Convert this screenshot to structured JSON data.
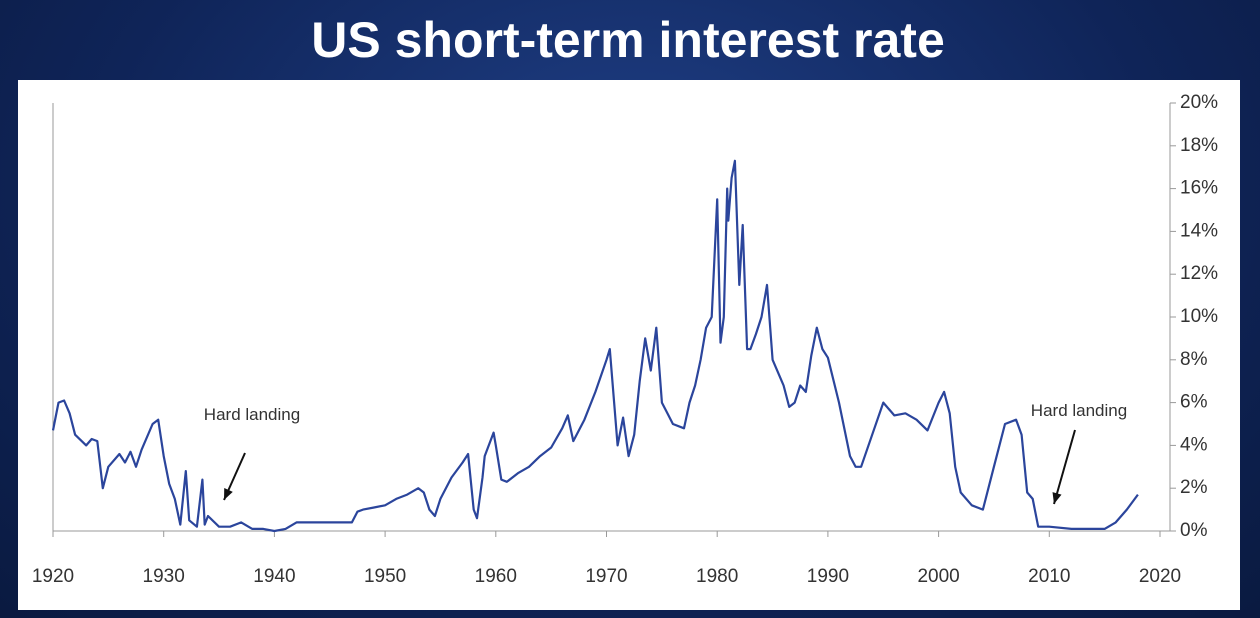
{
  "chart_data": {
    "type": "line",
    "title": "US short-term interest rate",
    "annotations": [
      "Hard landing",
      "Hard landing"
    ],
    "xlim": [
      1920,
      2020
    ],
    "xticks": [
      1920,
      1930,
      1940,
      1950,
      1960,
      1970,
      1980,
      1990,
      2000,
      2010,
      2020
    ],
    "ylim": [
      0,
      20
    ],
    "yticks": [
      {
        "value": 0,
        "label": "0%"
      },
      {
        "value": 2,
        "label": "2%"
      },
      {
        "value": 4,
        "label": "4%"
      },
      {
        "value": 6,
        "label": "6%"
      },
      {
        "value": 8,
        "label": "8%"
      },
      {
        "value": 10,
        "label": "10%"
      },
      {
        "value": 12,
        "label": "12%"
      },
      {
        "value": 14,
        "label": "14%"
      },
      {
        "value": 16,
        "label": "16%"
      },
      {
        "value": 18,
        "label": "18%"
      },
      {
        "value": 20,
        "label": "20%"
      }
    ],
    "color": "#2b459c",
    "x": [
      1920,
      1920.5,
      1921,
      1921.5,
      1922,
      1923,
      1923.5,
      1924,
      1924.5,
      1925,
      1926,
      1926.5,
      1927,
      1927.5,
      1928,
      1929,
      1929.5,
      1930,
      1930.5,
      1931,
      1931.5,
      1932,
      1932.3,
      1933,
      1933.5,
      1933.7,
      1934,
      1935,
      1936,
      1937,
      1938,
      1939,
      1940,
      1941,
      1942,
      1947,
      1947.5,
      1948,
      1949,
      1950,
      1951,
      1952,
      1953,
      1953.5,
      1954,
      1954.5,
      1955,
      1956,
      1957,
      1957.5,
      1958,
      1958.3,
      1958.8,
      1959,
      1959.8,
      1960,
      1960.5,
      1961,
      1962,
      1963,
      1964,
      1965,
      1966,
      1966.5,
      1967,
      1968,
      1969,
      1970,
      1970.3,
      1971,
      1971.5,
      1972,
      1972.5,
      1973,
      1973.5,
      1974,
      1974.5,
      1975,
      1975.5,
      1976,
      1977,
      1977.5,
      1978,
      1978.5,
      1979,
      1979.5,
      1980,
      1980.3,
      1980.6,
      1980.9,
      1981,
      1981.3,
      1981.6,
      1982,
      1982.3,
      1982.7,
      1983,
      1983.5,
      1984,
      1984.5,
      1985,
      1986,
      1986.5,
      1987,
      1987.5,
      1988,
      1988.5,
      1989,
      1989.5,
      1990,
      1991,
      1992,
      1992.5,
      1993,
      1994,
      1995,
      1996,
      1997,
      1998,
      1999,
      2000,
      2000.5,
      2001,
      2001.5,
      2002,
      2003,
      2004,
      2005,
      2006,
      2007,
      2007.5,
      2008,
      2008.5,
      2009,
      2010,
      2012,
      2015,
      2016,
      2017,
      2018
    ],
    "values": [
      4.7,
      6.0,
      6.1,
      5.5,
      4.5,
      4.0,
      4.3,
      4.2,
      2.0,
      3.0,
      3.6,
      3.2,
      3.7,
      3.0,
      3.8,
      5.0,
      5.2,
      3.5,
      2.2,
      1.5,
      0.3,
      2.8,
      0.5,
      0.2,
      2.4,
      0.3,
      0.7,
      0.2,
      0.2,
      0.4,
      0.1,
      0.1,
      0.0,
      0.1,
      0.4,
      0.4,
      0.9,
      1.0,
      1.1,
      1.2,
      1.5,
      1.7,
      2.0,
      1.8,
      1.0,
      0.7,
      1.5,
      2.5,
      3.2,
      3.6,
      1.0,
      0.6,
      2.5,
      3.5,
      4.6,
      4.0,
      2.4,
      2.3,
      2.7,
      3.0,
      3.5,
      3.9,
      4.8,
      5.4,
      4.2,
      5.2,
      6.5,
      8.0,
      8.5,
      4.0,
      5.3,
      3.5,
      4.5,
      7.0,
      9.0,
      7.5,
      9.5,
      6.0,
      5.5,
      5.0,
      4.8,
      6.0,
      6.8,
      8.0,
      9.5,
      10.0,
      15.5,
      8.8,
      10.0,
      16.0,
      14.5,
      16.5,
      17.3,
      11.5,
      14.3,
      8.5,
      8.5,
      9.2,
      10.0,
      11.5,
      8.0,
      6.8,
      5.8,
      6.0,
      6.8,
      6.5,
      8.2,
      9.5,
      8.5,
      8.1,
      6.0,
      3.5,
      3.0,
      3.0,
      4.5,
      6.0,
      5.4,
      5.5,
      5.2,
      4.7,
      6.0,
      6.5,
      5.5,
      3.0,
      1.8,
      1.2,
      1.0,
      3.0,
      5.0,
      5.2,
      4.5,
      1.8,
      1.5,
      0.2,
      0.2,
      0.1,
      0.1,
      0.4,
      1.0,
      1.7
    ]
  }
}
